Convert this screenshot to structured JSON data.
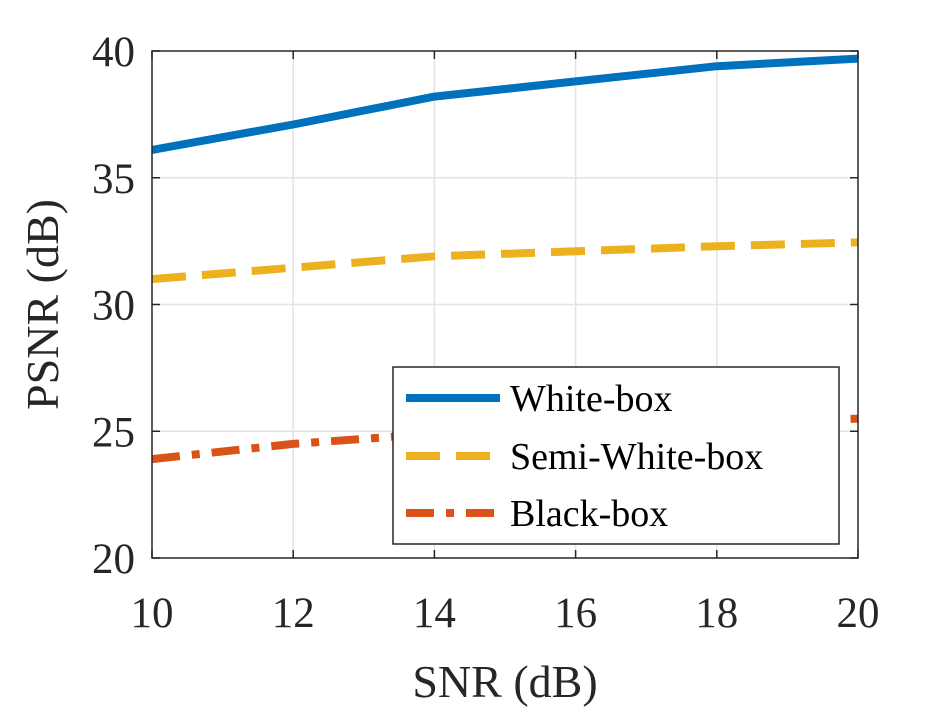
{
  "chart_data": {
    "type": "line",
    "xlabel": "SNR (dB)",
    "ylabel": "PSNR (dB)",
    "xlim": [
      10,
      20
    ],
    "ylim": [
      20,
      40
    ],
    "xticks": [
      10,
      12,
      14,
      16,
      18,
      20
    ],
    "yticks": [
      20,
      25,
      30,
      35,
      40
    ],
    "xtick_labels": [
      "10",
      "12",
      "14",
      "16",
      "18",
      "20"
    ],
    "ytick_labels": [
      "20",
      "25",
      "30",
      "35",
      "40"
    ],
    "grid": true,
    "legend_position": "bottom-right",
    "x": [
      10,
      12,
      14,
      16,
      18,
      20
    ],
    "series": [
      {
        "name": "White-box",
        "color": "#0072BD",
        "dash": "solid",
        "values": [
          36.1,
          37.1,
          38.2,
          38.8,
          39.4,
          39.7
        ]
      },
      {
        "name": "Semi-White-box",
        "color": "#EDB120",
        "dash": "dashed",
        "values": [
          31.0,
          31.45,
          31.9,
          32.1,
          32.3,
          32.45
        ]
      },
      {
        "name": "Black-box",
        "color": "#D95319",
        "dash": "dashdot",
        "values": [
          23.9,
          24.5,
          24.9,
          25.1,
          25.3,
          25.5
        ]
      }
    ]
  }
}
